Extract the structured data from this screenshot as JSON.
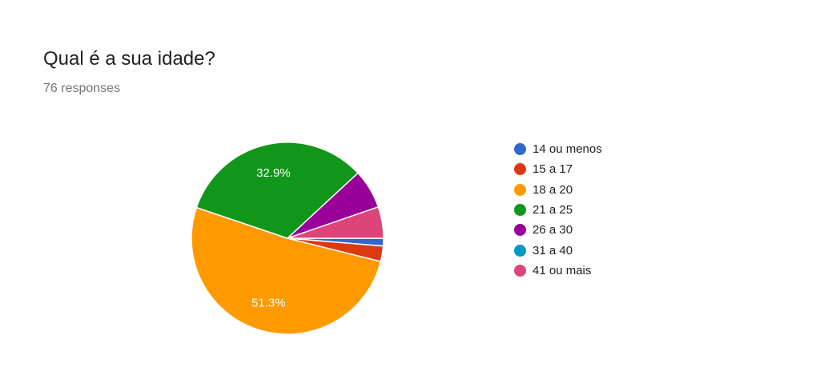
{
  "question": {
    "title": "Qual é a sua idade?",
    "responses_text": "76 responses"
  },
  "chart_data": {
    "type": "pie",
    "categories": [
      "14 ou menos",
      "15 a 17",
      "18 a 20",
      "21 a 25",
      "26 a 30",
      "31 a 40",
      "41 ou mais"
    ],
    "values": [
      1.3,
      2.6,
      51.3,
      32.9,
      6.6,
      0,
      5.3
    ],
    "counts": [
      1,
      2,
      39,
      25,
      5,
      0,
      4
    ],
    "unit": "%",
    "colors": [
      "#3366cc",
      "#dc3912",
      "#ff9900",
      "#109618",
      "#990099",
      "#0099c6",
      "#dd4477"
    ],
    "slice_labels": [
      "",
      "",
      "51.3%",
      "32.9%",
      "",
      "",
      ""
    ],
    "legend_position": "right",
    "start_direction": "clockwise from 3 o'clock, beginning with first category"
  }
}
